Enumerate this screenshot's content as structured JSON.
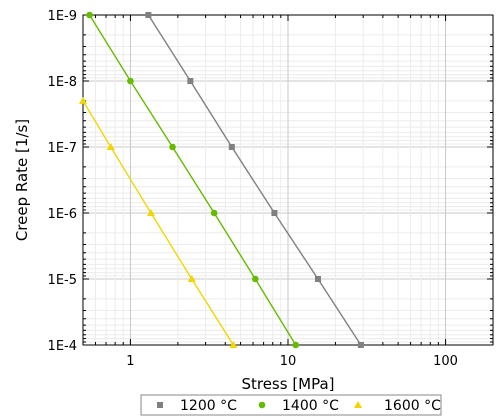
{
  "chart_data": {
    "type": "line",
    "xlabel": "Stress [MPa]",
    "ylabel": "Creep Rate [1/s]",
    "x_scale": "log",
    "y_scale": "log",
    "y_direction": "reversed",
    "xlim": [
      0.5,
      200
    ],
    "ylim": [
      1e-09,
      0.0001
    ],
    "x_ticks": [
      1,
      10,
      100
    ],
    "x_tick_labels": [
      "1",
      "10",
      "100"
    ],
    "y_ticks": [
      1e-09,
      1e-08,
      1e-07,
      1e-06,
      1e-05,
      0.0001
    ],
    "y_tick_labels": [
      "1E-9",
      "1E-8",
      "1E-7",
      "1E-6",
      "1E-5",
      "1E-4"
    ],
    "grid": true,
    "legend_position": "bottom",
    "series": [
      {
        "name": "1200 °C",
        "color": "#808080",
        "marker": "square",
        "x": [
          1.3,
          2.4,
          4.4,
          8.2,
          15.5,
          29
        ],
        "y": [
          1e-09,
          1e-08,
          1e-07,
          1e-06,
          1e-05,
          0.0001
        ]
      },
      {
        "name": "1400 °C",
        "color": "#66bb00",
        "marker": "circle",
        "x": [
          0.55,
          1.0,
          1.85,
          3.4,
          6.2,
          11.2
        ],
        "y": [
          1e-09,
          1e-08,
          1e-07,
          1e-06,
          1e-05,
          0.0001
        ]
      },
      {
        "name": "1600 °C",
        "color": "#f2d600",
        "marker": "triangle",
        "x": [
          0.5,
          0.75,
          1.35,
          2.45,
          4.5
        ],
        "y": [
          2e-08,
          1e-07,
          1e-06,
          1e-05,
          0.0001
        ]
      }
    ]
  }
}
